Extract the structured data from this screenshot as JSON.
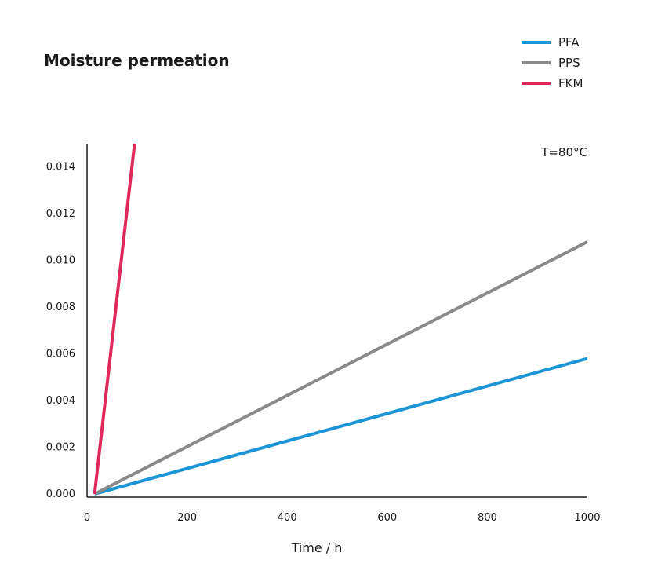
{
  "chart_data": {
    "type": "line",
    "title": "Moisture permeation",
    "xlabel": "Time / h",
    "ylabel": "",
    "annotation": "T=80°C",
    "xlim": [
      0,
      1000
    ],
    "ylim": [
      0,
      0.015
    ],
    "x_ticks": [
      0,
      200,
      400,
      600,
      800,
      1000
    ],
    "x_tick_labels": [
      "0",
      "200",
      "400",
      "600",
      "800",
      "1000"
    ],
    "y_ticks": [
      0,
      0.002,
      0.004,
      0.006,
      0.008,
      0.01,
      0.012,
      0.014
    ],
    "y_tick_labels": [
      "0.000",
      "0.002",
      "0.004",
      "0.006",
      "0.008",
      "0.010",
      "0.012",
      "0.014"
    ],
    "grid": false,
    "legend_position": "top-right",
    "series": [
      {
        "name": "PFA",
        "color": "#1b95d6",
        "x": [
          15,
          1000
        ],
        "y": [
          0,
          0.0058
        ]
      },
      {
        "name": "PPS",
        "color": "#8a8a8a",
        "x": [
          15,
          1000
        ],
        "y": [
          0,
          0.0108
        ]
      },
      {
        "name": "FKM",
        "color": "#e0285a",
        "x": [
          15,
          95
        ],
        "y": [
          0,
          0.015
        ]
      }
    ]
  }
}
